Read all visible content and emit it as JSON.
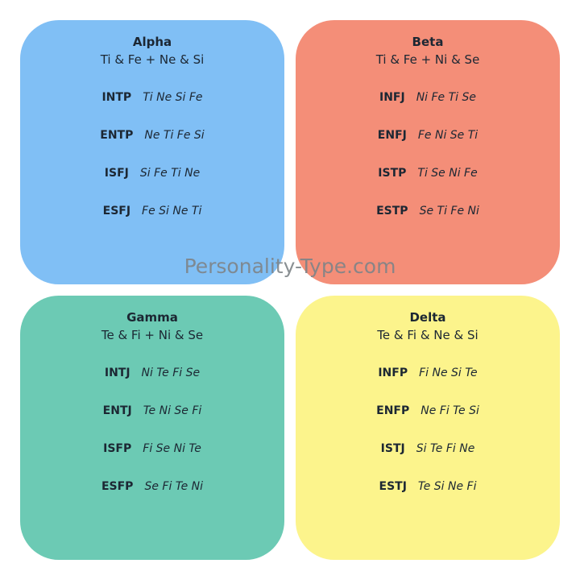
{
  "quadrants": [
    {
      "name": "Alpha",
      "functions": "Ti & Fe + Ne & Si",
      "color": "#80bff5",
      "types": [
        {
          "type": "INTP",
          "stack": "Ti Ne Si Fe"
        },
        {
          "type": "ENTP",
          "stack": "Ne Ti Fe Si"
        },
        {
          "type": "ISFJ",
          "stack": "Si Fe Ti Ne"
        },
        {
          "type": "ESFJ",
          "stack": "Fe Si Ne Ti"
        }
      ]
    },
    {
      "name": "Beta",
      "functions": "Ti & Fe + Ni & Se",
      "color": "#f48e78",
      "types": [
        {
          "type": "INFJ",
          "stack": "Ni Fe Ti Se"
        },
        {
          "type": "ENFJ",
          "stack": "Fe Ni Se Ti"
        },
        {
          "type": "ISTP",
          "stack": "Ti Se Ni Fe"
        },
        {
          "type": "ESTP",
          "stack": "Se Ti Fe Ni"
        }
      ]
    },
    {
      "name": "Gamma",
      "functions": "Te & Fi + Ni & Se",
      "color": "#6ccab4",
      "types": [
        {
          "type": "INTJ",
          "stack": "Ni Te Fi Se"
        },
        {
          "type": "ENTJ",
          "stack": "Te Ni Se Fi"
        },
        {
          "type": "ISFP",
          "stack": "Fi Se Ni Te"
        },
        {
          "type": "ESFP",
          "stack": "Se Fi Te Ni"
        }
      ]
    },
    {
      "name": "Delta",
      "functions": "Te & Fi & Ne & Si",
      "color": "#fcf48c",
      "types": [
        {
          "type": "INFP",
          "stack": "Fi Ne Si Te"
        },
        {
          "type": "ENFP",
          "stack": "Ne Fi Te Si"
        },
        {
          "type": "ISTJ",
          "stack": "Si Te Fi Ne"
        },
        {
          "type": "ESTJ",
          "stack": "Te Si Ne Fi"
        }
      ]
    }
  ],
  "watermark": "Personality-Type.com"
}
